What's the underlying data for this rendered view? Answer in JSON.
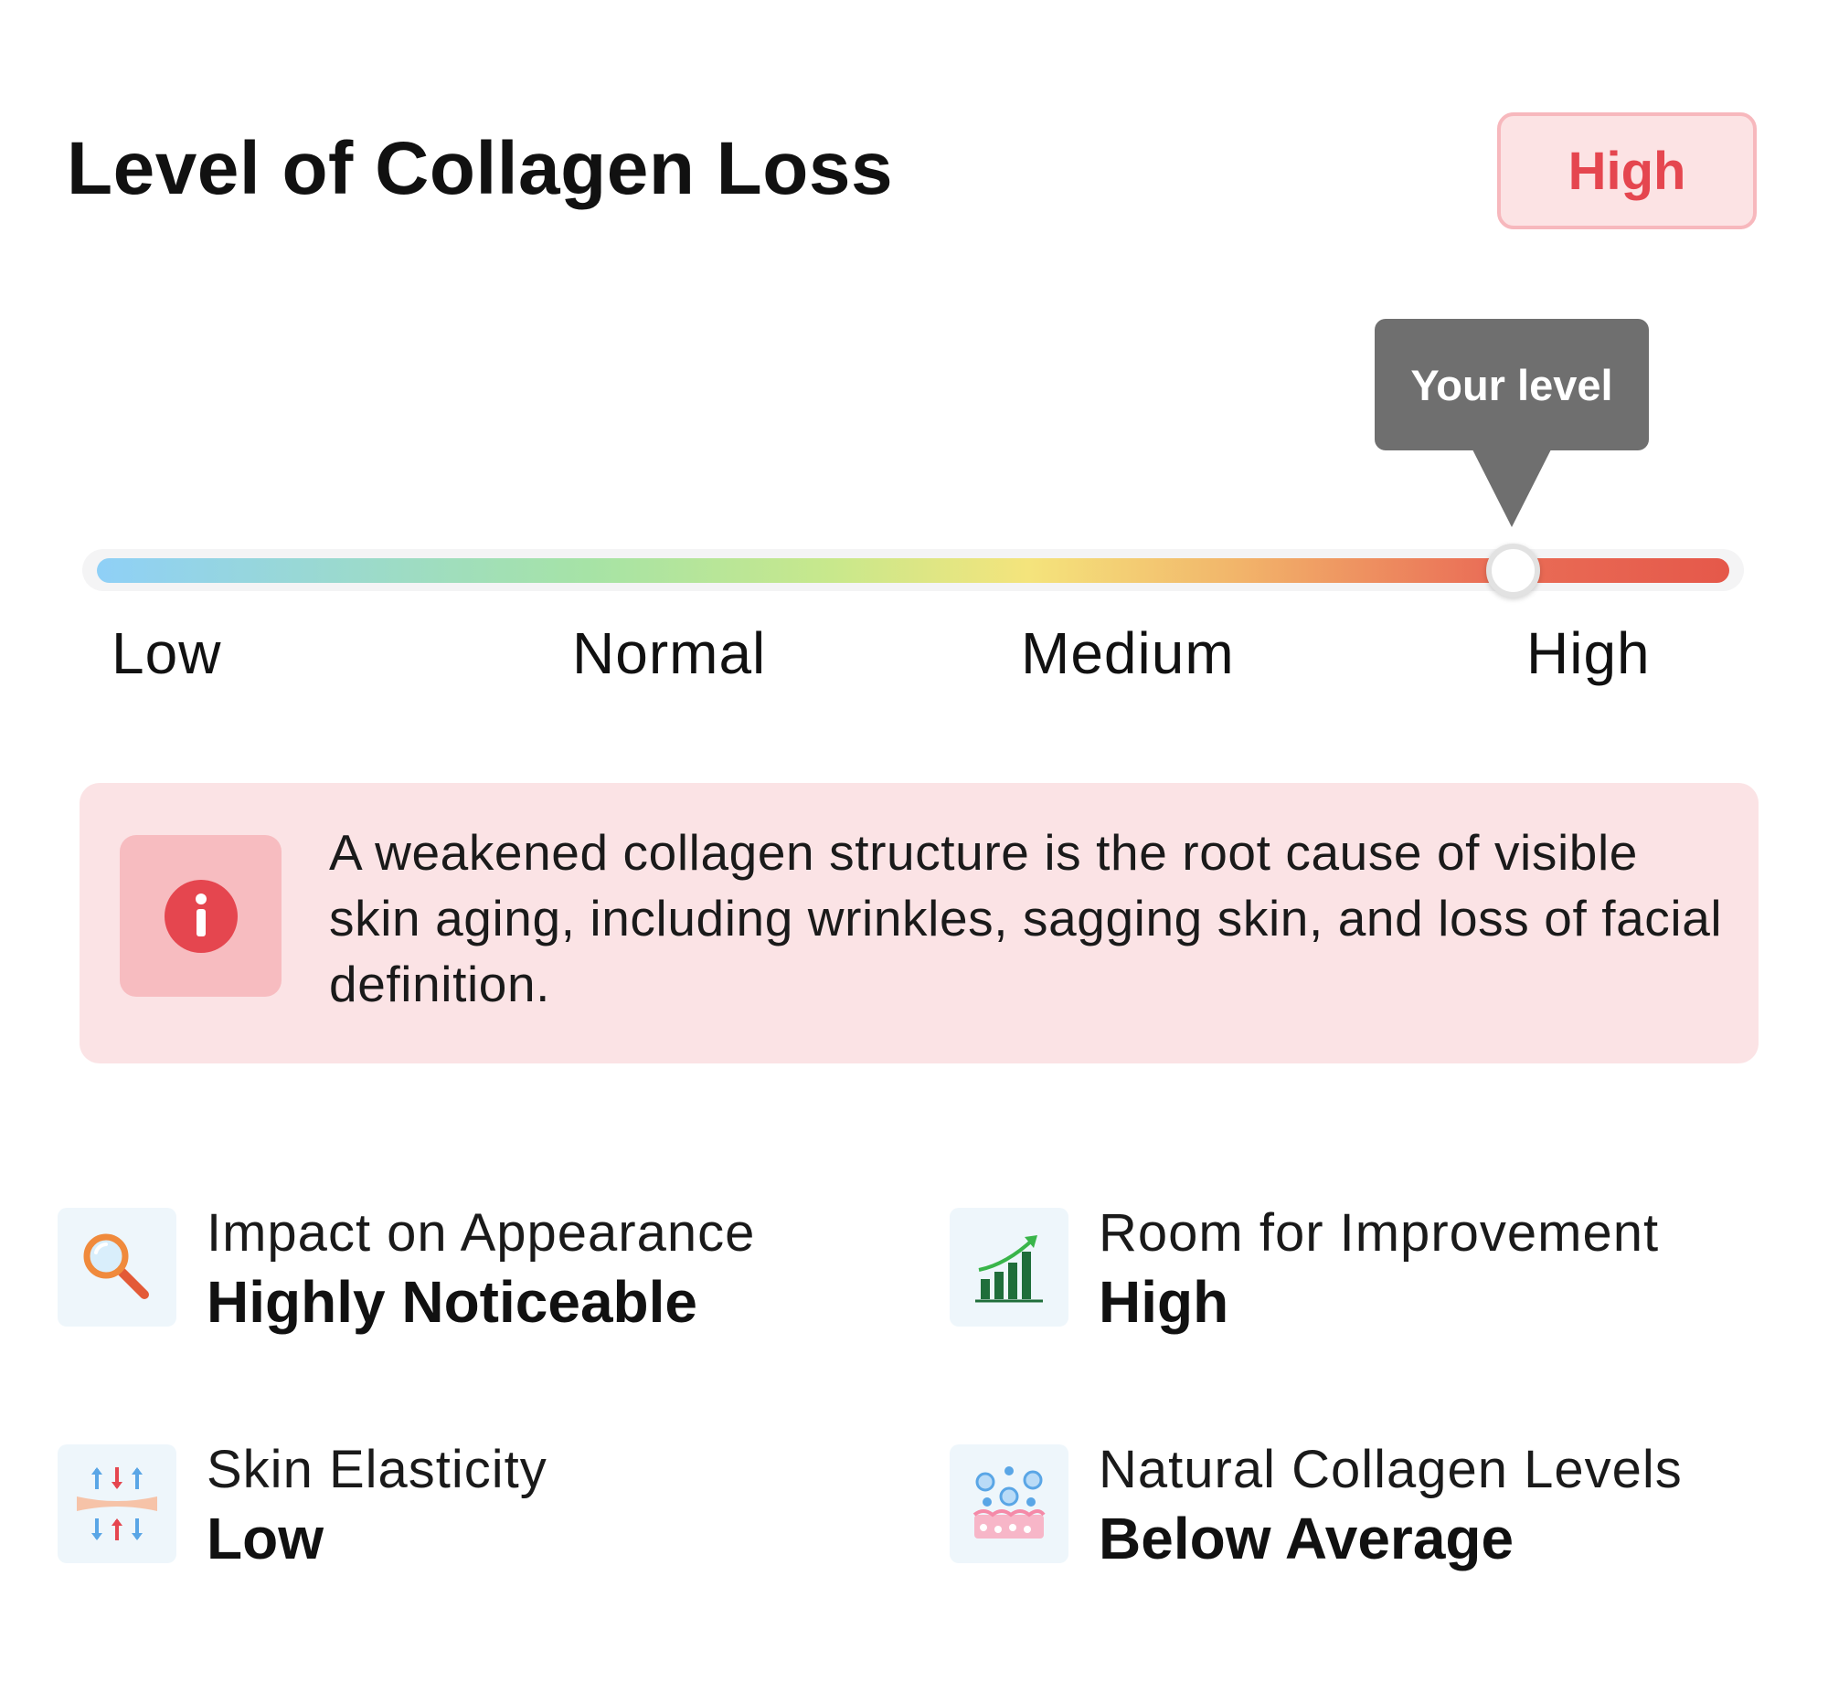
{
  "header": {
    "title": "Level of Collagen Loss",
    "badge": "High"
  },
  "scale": {
    "tooltip": "Your level",
    "labels": [
      "Low",
      "Normal",
      "Medium",
      "High"
    ],
    "current_level": "High",
    "indicator_position_percent": 86
  },
  "info": {
    "icon": "info-icon",
    "text": "A weakened collagen structure is the root cause of visible skin aging, including wrinkles, sagging skin, and loss of facial definition."
  },
  "stats": [
    {
      "icon": "magnifier-icon",
      "label": "Impact on Appearance",
      "value": "Highly Noticeable"
    },
    {
      "icon": "growth-chart-icon",
      "label": "Room for Improvement",
      "value": "High"
    },
    {
      "icon": "elasticity-icon",
      "label": "Skin Elasticity",
      "value": "Low"
    },
    {
      "icon": "collagen-icon",
      "label": "Natural Collagen Levels",
      "value": "Below Average"
    }
  ],
  "colors": {
    "accent_red": "#e5464f",
    "badge_bg": "#fce3e4",
    "info_bg": "#fbe3e5",
    "tooltip_bg": "#6f6f6f"
  }
}
